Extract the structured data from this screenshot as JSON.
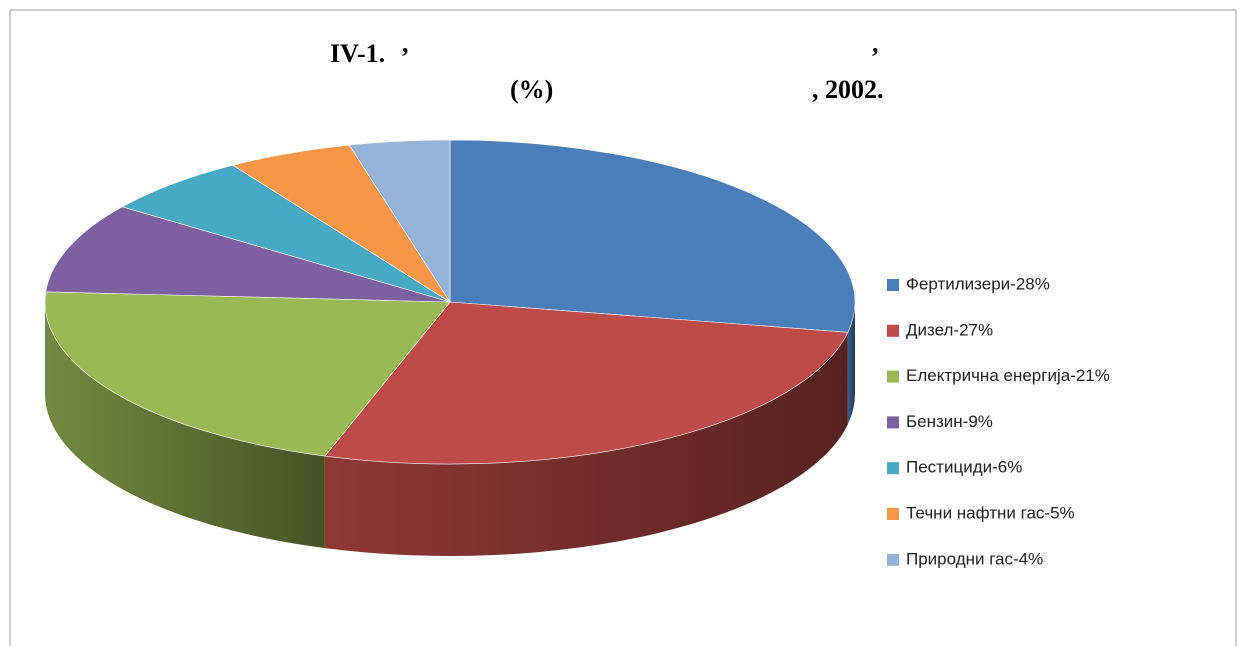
{
  "chart_data": {
    "type": "pie",
    "title_parts": [
      "IV-1.",
      ",",
      ",",
      "(%)",
      ", 2002."
    ],
    "categories": [
      "Фертилизери-28%",
      "Дизел-27%",
      "Електрична енергија-21%",
      "Бензин-9%",
      "Пестициди-6%",
      "Течни нафтни гас-5%",
      "Природни гас-4%"
    ],
    "values": [
      28,
      27,
      21,
      9,
      6,
      5,
      4
    ],
    "colors": [
      "#4a7ebb",
      "#be4b48",
      "#98b954",
      "#7d60a0",
      "#46aac5",
      "#f79646",
      "#95b3d7"
    ],
    "legend": "right"
  }
}
